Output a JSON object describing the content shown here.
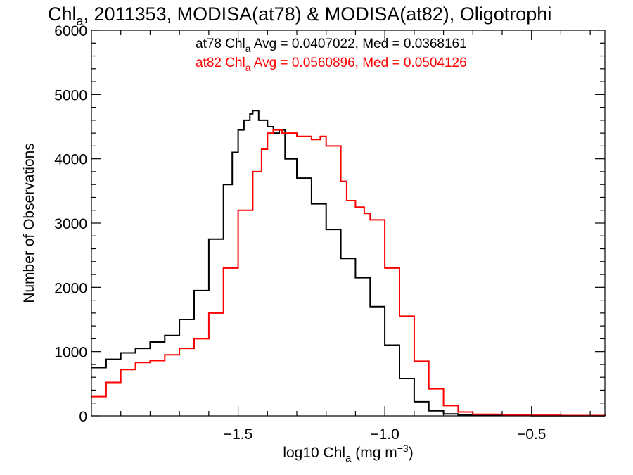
{
  "chart_data": {
    "type": "line",
    "title": {
      "prefix": "Chl",
      "sub": "a",
      "suffix": ", 2011353, MODISA(at78) & MODISA(at82), Oligotrophi"
    },
    "xlabel": {
      "prefix": "log10 Chl",
      "sub": "a",
      "mid": " (mg m",
      "sup": "−3",
      "end": ")"
    },
    "ylabel": "Number of Observations",
    "xlim": [
      -2.0,
      -0.25
    ],
    "ylim": [
      0,
      6000
    ],
    "xticks": [
      {
        "value": -1.5,
        "label": "−1.5"
      },
      {
        "value": -1.0,
        "label": "−1.0"
      },
      {
        "value": -0.5,
        "label": "−0.5"
      }
    ],
    "yticks": [
      {
        "value": 0,
        "label": "0"
      },
      {
        "value": 1000,
        "label": "1000"
      },
      {
        "value": 2000,
        "label": "2000"
      },
      {
        "value": 3000,
        "label": "3000"
      },
      {
        "value": 4000,
        "label": "4000"
      },
      {
        "value": 5000,
        "label": "5000"
      },
      {
        "value": 6000,
        "label": "6000"
      }
    ],
    "grid": false,
    "annotations": [
      {
        "prefix": "at78 Chl",
        "sub": "a",
        "suffix": " Avg = 0.0407022, Med = 0.0368161",
        "color": "#000000"
      },
      {
        "prefix": "at82 Chl",
        "sub": "a",
        "suffix": " Avg = 0.0560896, Med = 0.0504126",
        "color": "#ff0000"
      }
    ],
    "series": [
      {
        "color": "#000000",
        "x": [
          -2.0,
          -1.95,
          -1.9,
          -1.85,
          -1.8,
          -1.75,
          -1.7,
          -1.65,
          -1.6,
          -1.55,
          -1.52,
          -1.5,
          -1.48,
          -1.46,
          -1.45,
          -1.43,
          -1.4,
          -1.38,
          -1.36,
          -1.34,
          -1.3,
          -1.25,
          -1.2,
          -1.15,
          -1.1,
          -1.05,
          -1.0,
          -0.95,
          -0.9,
          -0.85,
          -0.8,
          -0.75,
          -0.7,
          -0.6,
          -0.5,
          -0.4,
          -0.25
        ],
        "y": [
          750,
          880,
          980,
          1050,
          1150,
          1250,
          1500,
          1950,
          2750,
          3600,
          4100,
          4450,
          4600,
          4700,
          4750,
          4600,
          4500,
          4400,
          4450,
          4000,
          3700,
          3300,
          2900,
          2450,
          2150,
          1700,
          1100,
          580,
          220,
          80,
          30,
          15,
          10,
          5,
          3,
          2,
          0
        ]
      },
      {
        "color": "#ff0000",
        "x": [
          -2.0,
          -1.95,
          -1.9,
          -1.85,
          -1.8,
          -1.75,
          -1.7,
          -1.65,
          -1.6,
          -1.55,
          -1.5,
          -1.45,
          -1.42,
          -1.4,
          -1.38,
          -1.35,
          -1.3,
          -1.25,
          -1.22,
          -1.2,
          -1.15,
          -1.13,
          -1.1,
          -1.07,
          -1.05,
          -1.0,
          -0.95,
          -0.9,
          -0.85,
          -0.8,
          -0.75,
          -0.7,
          -0.6,
          -0.5,
          -0.4,
          -0.25
        ],
        "y": [
          300,
          520,
          720,
          830,
          860,
          950,
          1050,
          1200,
          1600,
          2300,
          3200,
          3800,
          4150,
          4400,
          4450,
          4400,
          4350,
          4300,
          4350,
          4200,
          3650,
          3350,
          3250,
          3150,
          3050,
          2300,
          1550,
          850,
          420,
          160,
          60,
          25,
          15,
          10,
          5,
          0
        ]
      }
    ]
  }
}
